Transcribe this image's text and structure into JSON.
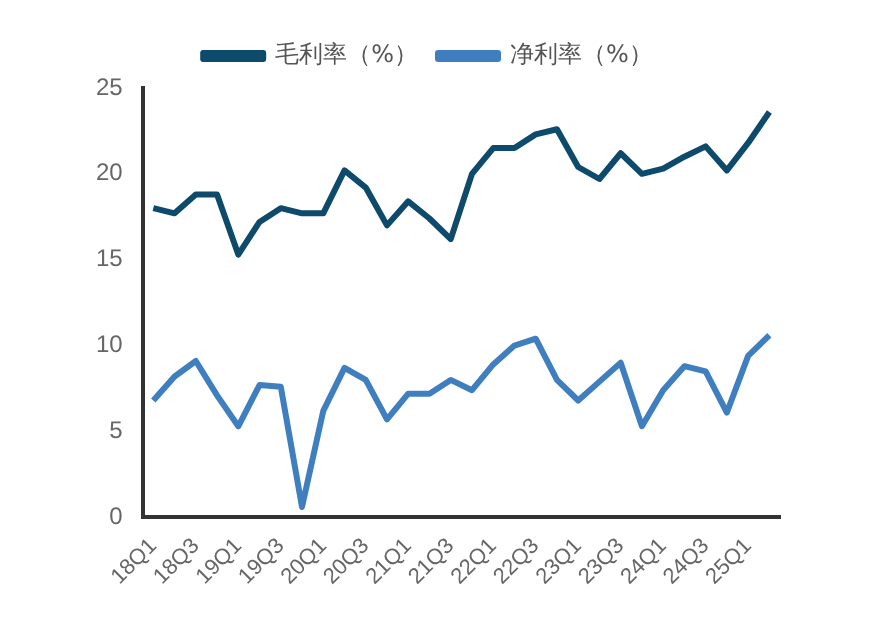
{
  "chart_data": {
    "type": "line",
    "categories": [
      "18Q1",
      null,
      "18Q3",
      null,
      "19Q1",
      null,
      "19Q3",
      null,
      "20Q1",
      null,
      "20Q3",
      null,
      "21Q1",
      null,
      "21Q3",
      null,
      "22Q1",
      null,
      "22Q3",
      null,
      "23Q1",
      null,
      "23Q3",
      null,
      "24Q1",
      null,
      "24Q3",
      null,
      "25Q1",
      null
    ],
    "series": [
      {
        "name": "毛利率（%）",
        "color": "#0d4a6b",
        "values": [
          18.0,
          17.7,
          18.8,
          18.8,
          15.3,
          17.2,
          18.0,
          17.7,
          17.7,
          20.2,
          19.2,
          17.0,
          18.4,
          17.4,
          16.2,
          20.0,
          21.5,
          21.5,
          22.3,
          22.6,
          20.4,
          19.7,
          21.2,
          20.0,
          20.3,
          21.0,
          21.6,
          20.2,
          21.8,
          23.6
        ]
      },
      {
        "name": "净利率（%）",
        "color": "#3f7fbf",
        "values": [
          6.8,
          8.2,
          9.1,
          7.1,
          5.3,
          7.7,
          7.6,
          0.6,
          6.2,
          8.7,
          8.0,
          5.7,
          7.2,
          7.2,
          8.0,
          7.4,
          8.9,
          10.0,
          10.4,
          8.0,
          6.8,
          7.9,
          9.0,
          5.3,
          7.4,
          8.8,
          8.5,
          6.1,
          9.4,
          10.6
        ]
      }
    ],
    "ylim": [
      0,
      25
    ],
    "yticks": [
      0,
      5,
      10,
      15,
      20,
      25
    ],
    "grid": false,
    "legend": "top",
    "marker": "none",
    "line_style": "solid"
  }
}
